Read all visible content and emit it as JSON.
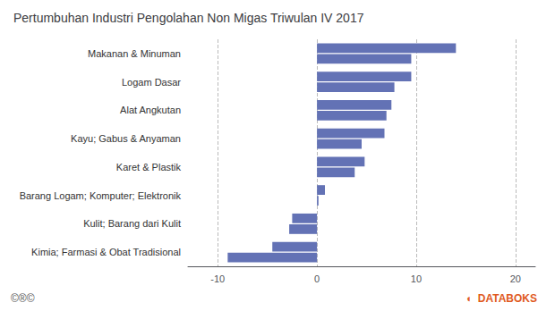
{
  "chart_data": {
    "type": "bar",
    "orientation": "horizontal",
    "title": "Pertumbuhan Industri Pengolahan Non Migas Triwulan IV 2017",
    "categories": [
      "Makanan & Minuman",
      "Logam Dasar",
      "Alat Angkutan",
      "Kayu; Gabus & Anyaman",
      "Karet & Plastik",
      "Barang Logam; Komputer; Elektronik",
      "Kulit; Barang dari Kulit",
      "Kimia; Farmasi & Obat Tradisional"
    ],
    "series": [
      {
        "color": "#6372b5",
        "values": [
          14.0,
          9.5,
          7.5,
          6.8,
          4.8,
          0.8,
          -2.5,
          -4.5
        ]
      },
      {
        "color": "#6372b5",
        "values": [
          9.5,
          7.8,
          7.0,
          4.5,
          3.8,
          0.15,
          -2.8,
          -9.0
        ]
      }
    ],
    "xlim": [
      -13,
      22
    ],
    "xticks": [
      -10,
      0,
      10,
      20
    ],
    "grid": true,
    "annotations": [
      {
        "text": "©®©",
        "color": "#555555"
      },
      {
        "text": "◖  DATABOKS",
        "color": "#e05a1e"
      }
    ]
  }
}
